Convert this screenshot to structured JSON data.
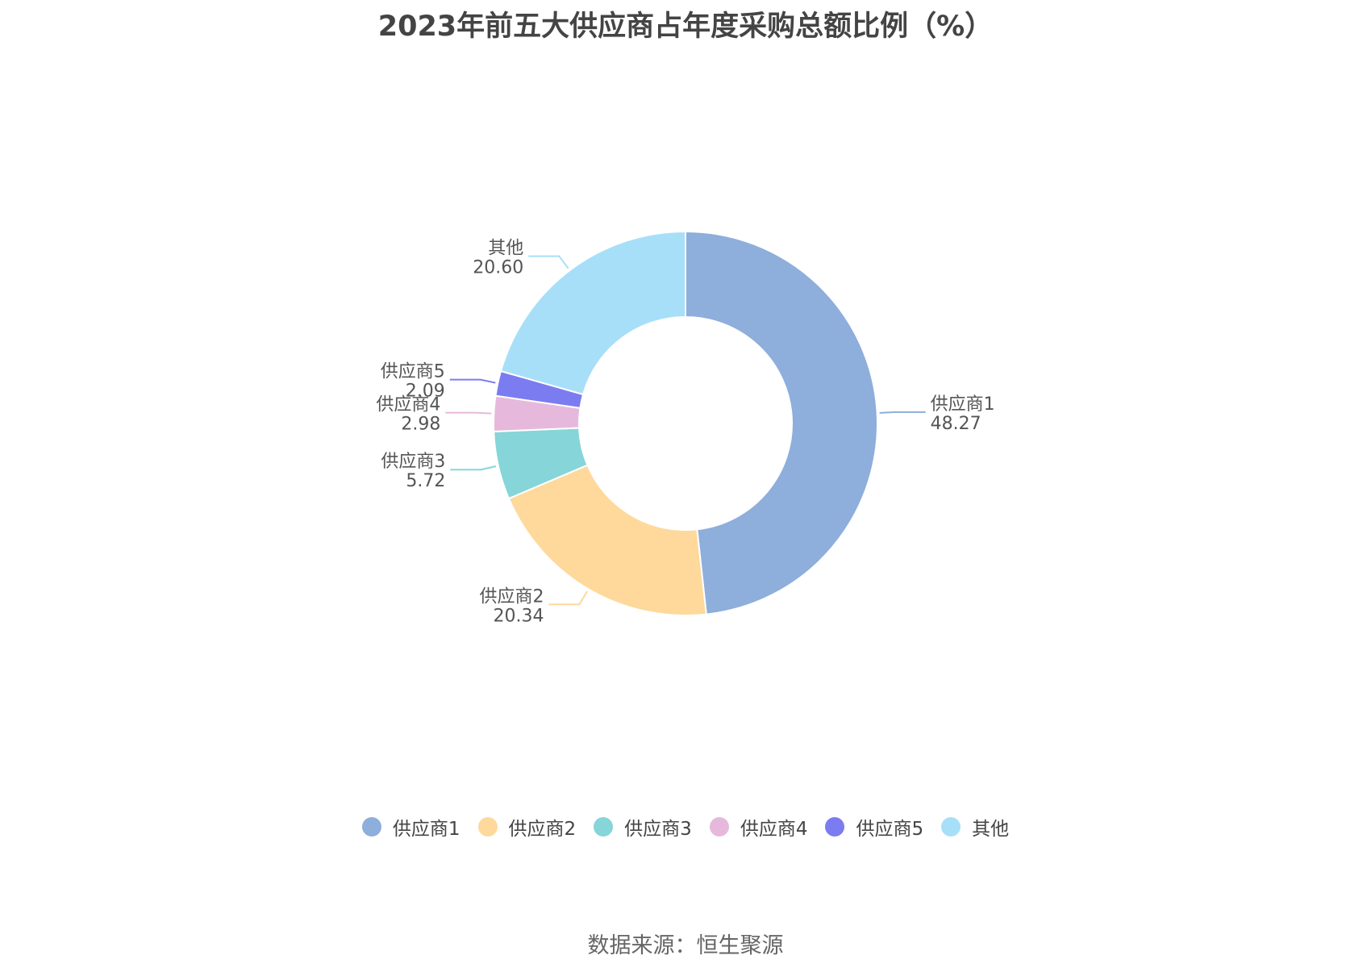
{
  "chart_data": {
    "type": "pie",
    "title": "2023年前五大供应商占年度采购总额比例（%）",
    "donut": true,
    "slices": [
      {
        "name": "供应商1",
        "value": 48.27,
        "value_label": "48.27",
        "color": "#8eaedb"
      },
      {
        "name": "供应商2",
        "value": 20.34,
        "value_label": "20.34",
        "color": "#fed99b"
      },
      {
        "name": "供应商3",
        "value": 5.72,
        "value_label": "5.72",
        "color": "#86d5d8"
      },
      {
        "name": "供应商4",
        "value": 2.98,
        "value_label": "2.98",
        "color": "#e6b9dc"
      },
      {
        "name": "供应商5",
        "value": 2.09,
        "value_label": "2.09",
        "color": "#7b7cf0"
      },
      {
        "name": "其他",
        "value": 20.6,
        "value_label": "20.60",
        "color": "#a8dff8"
      }
    ],
    "legend_position": "bottom"
  },
  "source": "数据来源：恒生聚源"
}
